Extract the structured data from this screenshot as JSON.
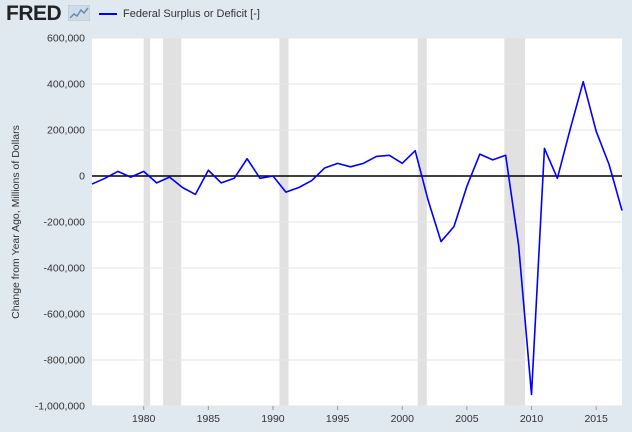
{
  "header": {
    "logo_text": "FRED",
    "logo_icon": "graph-line-icon",
    "legend_label": "Federal Surplus or Deficit [-]"
  },
  "colors": {
    "background": "#e1e9f0",
    "plot_background": "#ffffff",
    "series": "#0000ff",
    "recession": "#e1e1e1",
    "zero_line": "#000000",
    "grid": "#e6e6e6",
    "text": "#333333"
  },
  "chart_data": {
    "type": "line",
    "title": "",
    "xlabel": "",
    "ylabel": "Change from Year Ago, Millions of Dollars",
    "xlim": [
      1976,
      2017
    ],
    "ylim": [
      -1000000,
      600000
    ],
    "y_ticks": [
      600000,
      400000,
      200000,
      0,
      -200000,
      -400000,
      -600000,
      -800000,
      -1000000
    ],
    "y_tick_labels": [
      "600,000",
      "400,000",
      "200,000",
      "0",
      "-200,000",
      "-400,000",
      "-600,000",
      "-800,000",
      "-1,000,000"
    ],
    "x_ticks": [
      1980,
      1985,
      1990,
      1995,
      2000,
      2005,
      2010,
      2015
    ],
    "x_tick_labels": [
      "1980",
      "1985",
      "1990",
      "1995",
      "2000",
      "2005",
      "2010",
      "2015"
    ],
    "grid": true,
    "recessions": [
      [
        1980.0,
        1980.5
      ],
      [
        1981.5,
        1982.9
      ],
      [
        1990.5,
        1991.2
      ],
      [
        2001.2,
        2001.9
      ],
      [
        2007.9,
        2009.5
      ]
    ],
    "series": [
      {
        "name": "Federal Surplus or Deficit [-]",
        "x": [
          1976,
          1977,
          1978,
          1979,
          1980,
          1981,
          1982,
          1983,
          1984,
          1985,
          1986,
          1987,
          1988,
          1989,
          1990,
          1991,
          1992,
          1993,
          1994,
          1995,
          1996,
          1997,
          1998,
          1999,
          2000,
          2001,
          2002,
          2003,
          2004,
          2005,
          2006,
          2007,
          2008,
          2009,
          2010,
          2011,
          2012,
          2013,
          2014,
          2015,
          2016,
          2017
        ],
        "values": [
          -35000,
          -10000,
          20000,
          -5000,
          20000,
          -30000,
          -5000,
          -50000,
          -80000,
          25000,
          -30000,
          -10000,
          75000,
          -10000,
          0,
          -70000,
          -50000,
          -20000,
          35000,
          55000,
          40000,
          55000,
          85000,
          90000,
          55000,
          110000,
          -105000,
          -285000,
          -220000,
          -45000,
          95000,
          70000,
          90000,
          -300000,
          -950000,
          120000,
          -10000,
          205000,
          410000,
          195000,
          50000,
          -150000
        ]
      }
    ]
  }
}
